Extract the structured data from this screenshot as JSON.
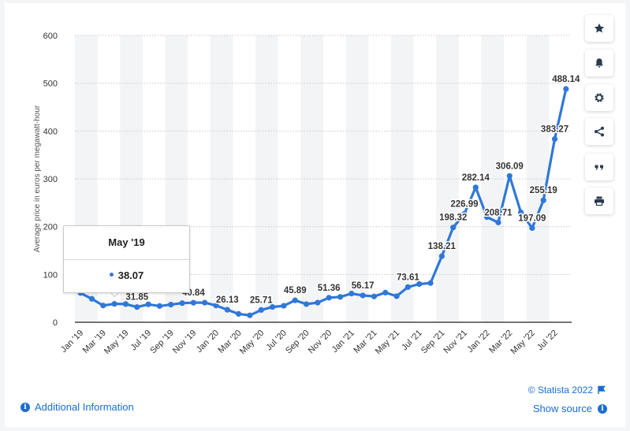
{
  "colors": {
    "line": "#2f78d8",
    "link": "#1a6dd1",
    "band": "#f3f4f6",
    "grid": "#c8c8c8"
  },
  "toolbar": {
    "icons": [
      "star-icon",
      "bell-icon",
      "gear-icon",
      "share-icon",
      "quote-icon",
      "print-icon"
    ]
  },
  "tooltip": {
    "title": "May '19",
    "value": "38.07"
  },
  "footer": {
    "additional_info": "Additional Information",
    "copyright": "© Statista 2022",
    "show_source": "Show source"
  },
  "chart_data": {
    "type": "line",
    "ylabel": "Average price in euros per megawatt-hour",
    "xlabel": "",
    "ylim": [
      0,
      600
    ],
    "yticks": [
      0,
      100,
      200,
      300,
      400,
      500,
      600
    ],
    "grid": true,
    "x": [
      "Jan '19",
      "Feb '19",
      "Mar '19",
      "Apr '19",
      "May '19",
      "Jun '19",
      "Jul '19",
      "Aug '19",
      "Sep '19",
      "Oct '19",
      "Nov '19",
      "Dec '19",
      "Jan '20",
      "Feb '20",
      "Mar '20",
      "Apr '20",
      "May '20",
      "Jun '20",
      "Jul '20",
      "Aug '20",
      "Sep '20",
      "Oct '20",
      "Nov '20",
      "Dec '20",
      "Jan '21",
      "Feb '21",
      "Mar '21",
      "Apr '21",
      "May '21",
      "Jun '21",
      "Jul '21",
      "Aug '21",
      "Sep '21",
      "Oct '21",
      "Nov '21",
      "Dec '21",
      "Jan '22",
      "Feb '22",
      "Mar '22",
      "Apr '22",
      "May '22",
      "Jun '22",
      "Jul '22",
      "Aug '22"
    ],
    "x_tick_labels": [
      "Jan '19",
      "Mar '19",
      "May '19",
      "Jul '19",
      "Sep '19",
      "Nov '19",
      "Jan '20",
      "Mar '20",
      "May '20",
      "Jul '20",
      "Sep '20",
      "Nov '20",
      "Jan '21",
      "Mar '21",
      "May '21",
      "Jul '21",
      "Sep '21",
      "Nov '21",
      "Jan '22",
      "Mar '22",
      "May '22",
      "Jul '22"
    ],
    "series": [
      {
        "values": [
          61.2,
          49.0,
          35.0,
          38.5,
          38.07,
          31.85,
          37.5,
          34.0,
          37.0,
          40.0,
          40.84,
          41.0,
          35.0,
          26.13,
          17.5,
          14.5,
          25.71,
          32.0,
          34.5,
          45.89,
          38.0,
          41.0,
          51.36,
          53.0,
          60.0,
          56.17,
          54.0,
          62.0,
          54.5,
          73.61,
          80.0,
          82.0,
          138.21,
          198.32,
          226.99,
          282.14,
          220.0,
          208.71,
          306.09,
          230.0,
          197.09,
          255.19,
          383.27,
          488.14
        ]
      }
    ],
    "data_labels": [
      {
        "index": 5,
        "text": "31.85"
      },
      {
        "index": 10,
        "text": "40.84"
      },
      {
        "index": 13,
        "text": "26.13"
      },
      {
        "index": 16,
        "text": "25.71"
      },
      {
        "index": 19,
        "text": "45.89"
      },
      {
        "index": 22,
        "text": "51.36"
      },
      {
        "index": 25,
        "text": "56.17"
      },
      {
        "index": 29,
        "text": "73.61"
      },
      {
        "index": 32,
        "text": "138.21"
      },
      {
        "index": 33,
        "text": "198.32"
      },
      {
        "index": 34,
        "text": "226.99"
      },
      {
        "index": 35,
        "text": "282.14"
      },
      {
        "index": 37,
        "text": "208.71"
      },
      {
        "index": 38,
        "text": "306.09"
      },
      {
        "index": 40,
        "text": "197.09"
      },
      {
        "index": 41,
        "text": "255.19"
      },
      {
        "index": 42,
        "text": "383.27"
      },
      {
        "index": 43,
        "text": "488.14"
      }
    ]
  }
}
